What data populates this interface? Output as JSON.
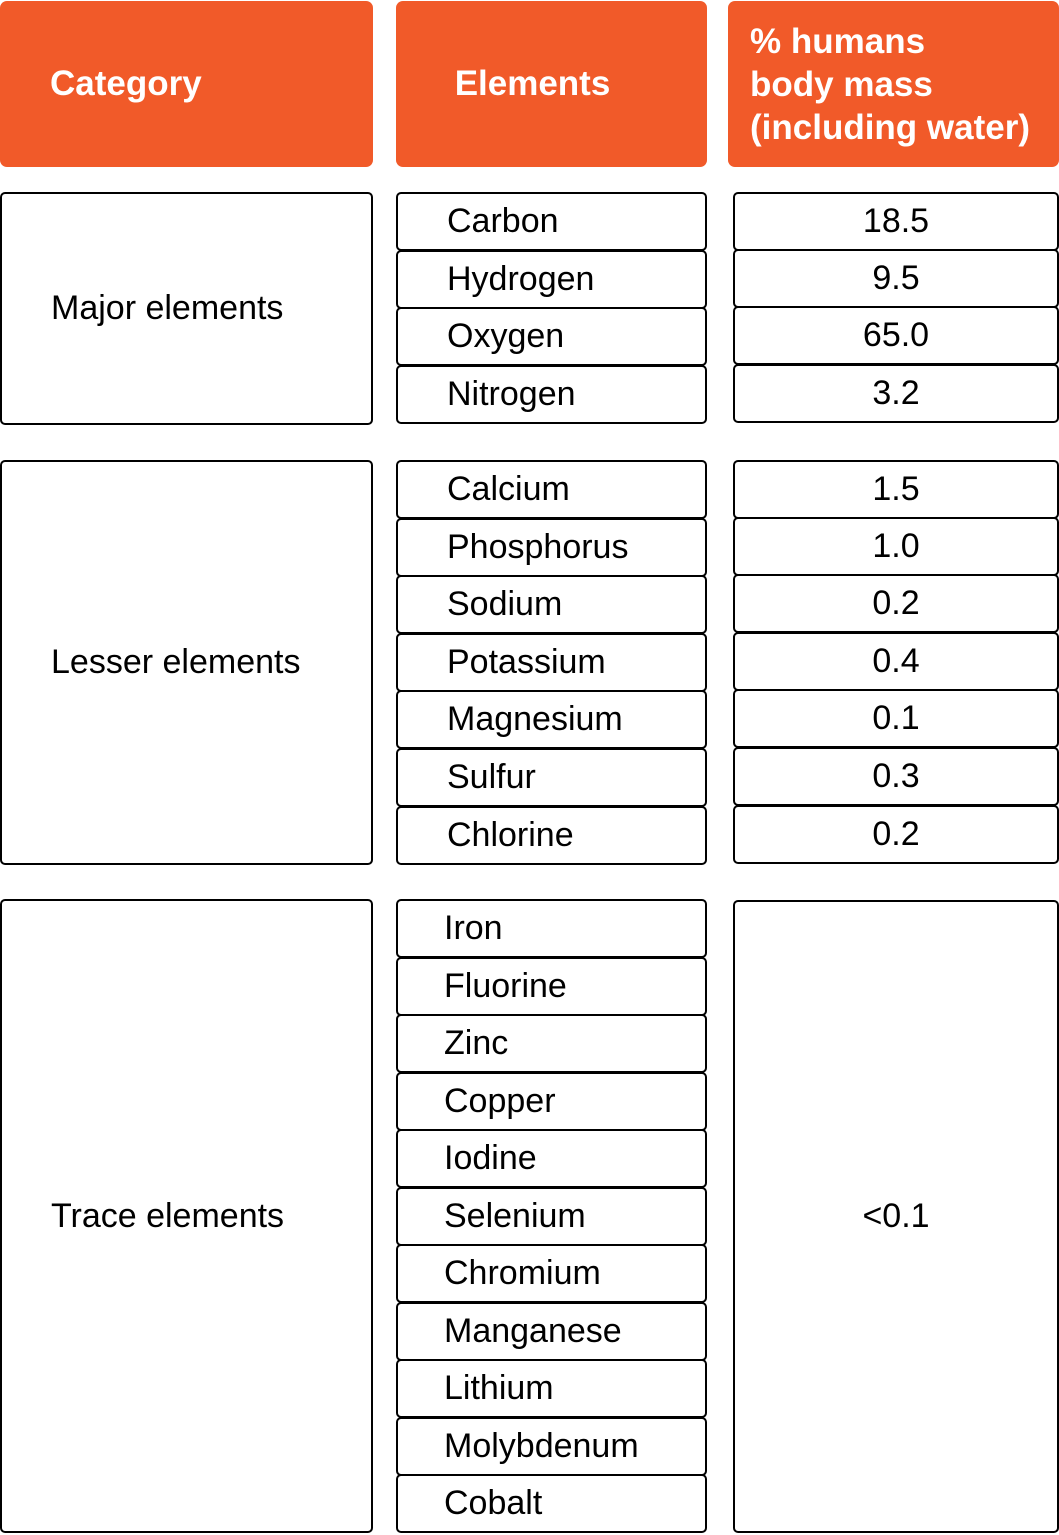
{
  "colors": {
    "header_bg": "#f15a29",
    "header_text": "#ffffff",
    "border": "#000000"
  },
  "chart_data": {
    "type": "table",
    "columns": [
      "Category",
      "Elements",
      "% humans\nbody mass\n(including water)"
    ],
    "groups": [
      {
        "category": "Major elements",
        "rows": [
          {
            "element": "Carbon",
            "percent": "18.5"
          },
          {
            "element": "Hydrogen",
            "percent": "9.5"
          },
          {
            "element": "Oxygen",
            "percent": "65.0"
          },
          {
            "element": "Nitrogen",
            "percent": "3.2"
          }
        ]
      },
      {
        "category": "Lesser elements",
        "rows": [
          {
            "element": "Calcium",
            "percent": "1.5"
          },
          {
            "element": "Phosphorus",
            "percent": "1.0"
          },
          {
            "element": "Sodium",
            "percent": "0.2"
          },
          {
            "element": "Potassium",
            "percent": "0.4"
          },
          {
            "element": "Magnesium",
            "percent": "0.1"
          },
          {
            "element": "Sulfur",
            "percent": "0.3"
          },
          {
            "element": "Chlorine",
            "percent": "0.2"
          }
        ]
      },
      {
        "category": "Trace elements",
        "elements": [
          "Iron",
          "Fluorine",
          "Zinc",
          "Copper",
          "Iodine",
          "Selenium",
          "Chromium",
          "Manganese",
          "Lithium",
          "Molybdenum",
          "Cobalt"
        ],
        "percent": "<0.1"
      }
    ]
  }
}
